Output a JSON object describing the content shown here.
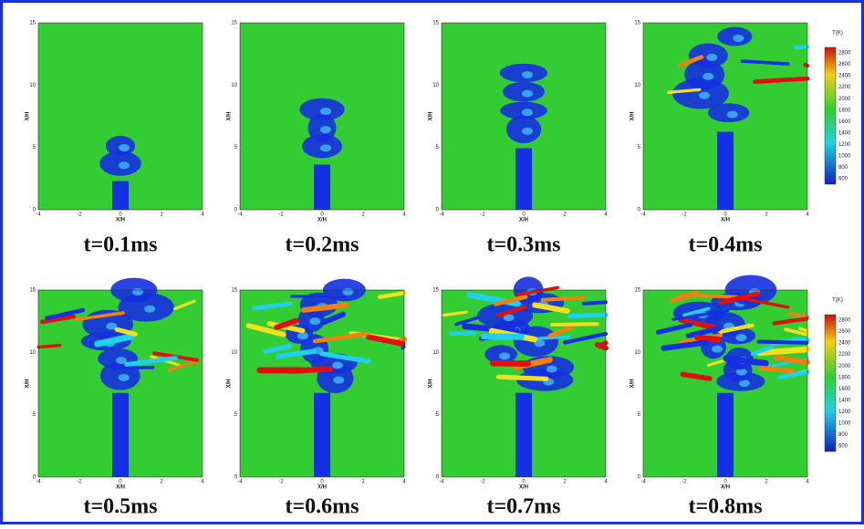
{
  "panels": [
    {
      "caption": "t=0.1ms",
      "x_label": "X/H",
      "y_label": "X/H"
    },
    {
      "caption": "t=0.2ms",
      "x_label": "X/H",
      "y_label": "X/H"
    },
    {
      "caption": "t=0.3ms",
      "x_label": "X/H",
      "y_label": "X/H"
    },
    {
      "caption": "t=0.4ms",
      "x_label": "X/H",
      "y_label": "X/H"
    },
    {
      "caption": "t=0.5ms",
      "x_label": "X/H",
      "y_label": "X/H"
    },
    {
      "caption": "t=0.6ms",
      "x_label": "X/H",
      "y_label": "X/H"
    },
    {
      "caption": "t=0.7ms",
      "x_label": "X/H",
      "y_label": "X/H"
    },
    {
      "caption": "t=0.8ms",
      "x_label": "X/H",
      "y_label": "X/H"
    }
  ],
  "x_ticks": [
    "-4",
    "-2",
    "0",
    "2",
    "4"
  ],
  "y_ticks": [
    "0",
    "5",
    "10",
    "15"
  ],
  "colorbars": [
    {
      "title": "T(K)",
      "labels": [
        "2800",
        "2600",
        "2400",
        "2200",
        "2000",
        "1800",
        "1600",
        "1400",
        "1200",
        "1000",
        "800",
        "600"
      ]
    },
    {
      "title": "T(K)",
      "labels": [
        "2800",
        "2600",
        "2400",
        "2200",
        "2000",
        "1800",
        "1600",
        "1400",
        "1200",
        "1000",
        "800",
        "600"
      ]
    }
  ]
}
